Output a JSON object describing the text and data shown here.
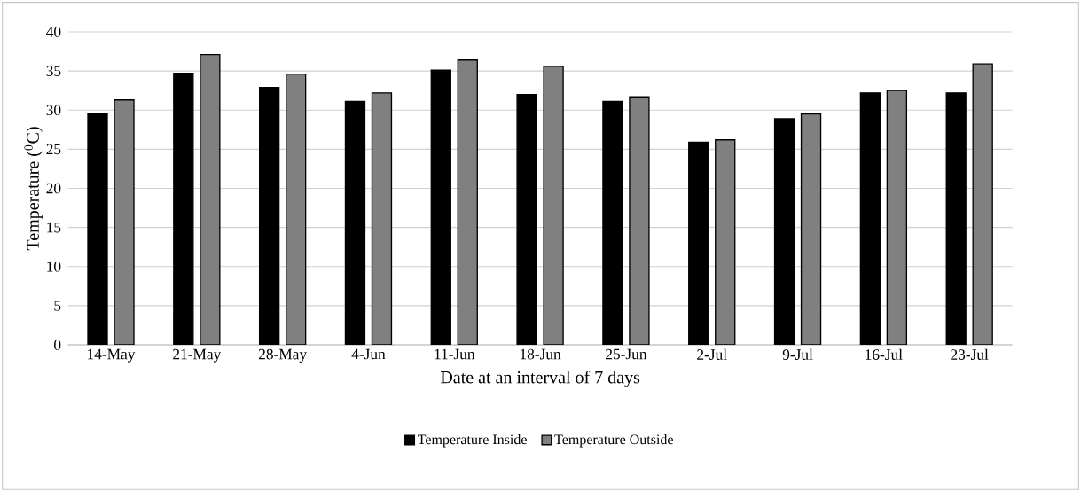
{
  "chart_data": {
    "type": "bar",
    "xlabel": "Date at an interval of 7 days",
    "ylabel": "Temperature ($^{0}$C)",
    "categories": [
      "14-May",
      "21-May",
      "28-May",
      "4-Jun",
      "11-Jun",
      "18-Jun",
      "25-Jun",
      "2-Jul",
      "9-Jul",
      "16-Jul",
      "23-Jul"
    ],
    "series": [
      {
        "name": "Temperature Inside",
        "color": "#000000",
        "values": [
          29.6,
          34.7,
          32.9,
          31.1,
          35.1,
          32.0,
          31.1,
          25.9,
          28.9,
          32.2,
          32.2
        ]
      },
      {
        "name": "Temperature Outside",
        "color": "#808080",
        "values": [
          31.3,
          37.1,
          34.6,
          32.2,
          36.4,
          35.6,
          31.7,
          26.2,
          29.5,
          32.5,
          35.9
        ]
      }
    ],
    "ylim": [
      0,
      40
    ],
    "yticks": [
      0,
      5,
      10,
      15,
      20,
      25,
      30,
      35,
      40
    ],
    "grid": "y",
    "legend": "bottom"
  }
}
